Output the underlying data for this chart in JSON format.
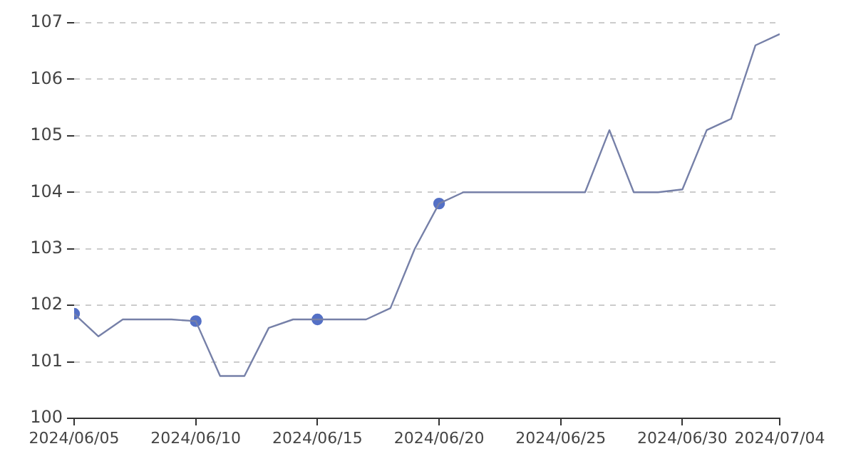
{
  "chart_data": {
    "type": "line",
    "x": [
      "2024-06-05",
      "2024-06-06",
      "2024-06-07",
      "2024-06-08",
      "2024-06-09",
      "2024-06-10",
      "2024-06-11",
      "2024-06-12",
      "2024-06-13",
      "2024-06-14",
      "2024-06-15",
      "2024-06-16",
      "2024-06-17",
      "2024-06-18",
      "2024-06-19",
      "2024-06-20",
      "2024-06-21",
      "2024-06-22",
      "2024-06-23",
      "2024-06-24",
      "2024-06-25",
      "2024-06-26",
      "2024-06-27",
      "2024-06-28",
      "2024-06-29",
      "2024-06-30",
      "2024-07-01",
      "2024-07-02",
      "2024-07-03",
      "2024-07-04"
    ],
    "series": [
      {
        "color": "#7680a8",
        "values": [
          101.85,
          101.45,
          101.75,
          101.75,
          101.75,
          101.72,
          100.75,
          100.75,
          101.6,
          101.75,
          101.75,
          101.75,
          101.75,
          101.95,
          103.0,
          103.8,
          104.0,
          104.0,
          104.0,
          104.0,
          104.0,
          104.0,
          105.1,
          104.0,
          104.0,
          104.05,
          105.1,
          105.3,
          106.6,
          106.8
        ]
      },
      {
        "type": "scatter",
        "color": "#5470c6",
        "x": [
          "2024-06-05",
          "2024-06-10",
          "2024-06-15",
          "2024-06-20"
        ],
        "values": [
          101.85,
          101.72,
          101.75,
          103.8
        ]
      }
    ],
    "ylim": [
      100,
      107
    ],
    "yticks": [
      100,
      101,
      102,
      103,
      104,
      105,
      106,
      107
    ],
    "xlim": [
      "2024-06-05",
      "2024-07-04"
    ],
    "xticks": [
      {
        "value": "2024-06-05",
        "label": "2024/06/05"
      },
      {
        "value": "2024-06-10",
        "label": "2024/06/10"
      },
      {
        "value": "2024-06-15",
        "label": "2024/06/15"
      },
      {
        "value": "2024-06-20",
        "label": "2024/06/20"
      },
      {
        "value": "2024-06-25",
        "label": "2024/06/25"
      },
      {
        "value": "2024-06-30",
        "label": "2024/06/30"
      },
      {
        "value": "2024-07-04",
        "label": "2024/07/04"
      }
    ],
    "grid": "y",
    "line_style": "solid",
    "legend": false
  }
}
